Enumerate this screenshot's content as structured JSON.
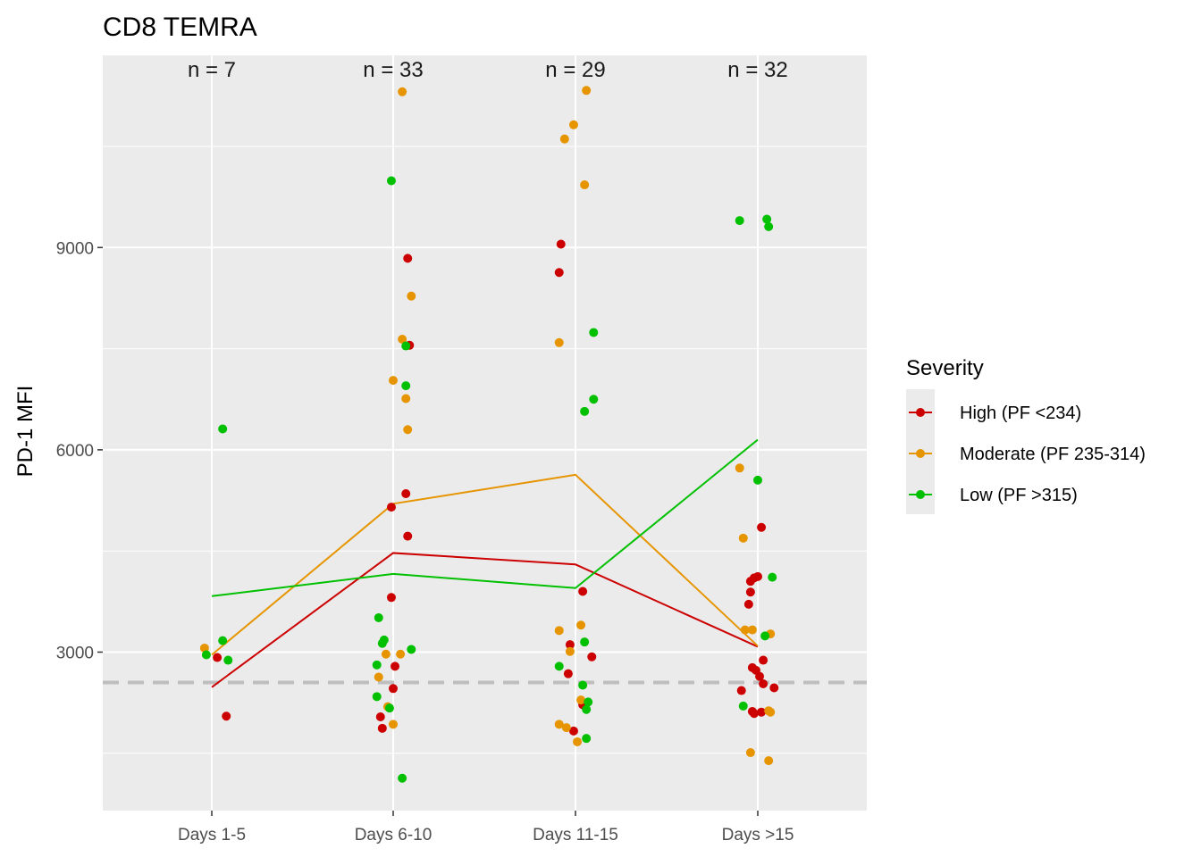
{
  "chart_data": {
    "type": "scatter",
    "title": "CD8 TEMRA",
    "xlabel": "",
    "ylabel": "PD-1 MFI",
    "categories": [
      "Days 1-5",
      "Days 6-10",
      "Days 11-15",
      "Days >15"
    ],
    "ylim": [
      650,
      11850
    ],
    "yticks": [
      3000,
      6000,
      9000
    ],
    "grid": true,
    "panel_background": "#ebebeb",
    "reference_line": {
      "y": 2550,
      "color": "#bebebe",
      "style": "dashed"
    },
    "n_labels": [
      "n = 7",
      "n = 33",
      "n = 29",
      "n = 32"
    ],
    "legend": {
      "title": "Severity",
      "position": "right"
    },
    "series": [
      {
        "name": "High (PF <234)",
        "color": "#cc0000",
        "line_means": [
          2480,
          4470,
          4300,
          3080
        ],
        "points": [
          [
            0.03,
            2920
          ],
          [
            0.08,
            2050
          ],
          [
            -0.01,
            5150
          ],
          [
            0.07,
            5350
          ],
          [
            0.08,
            4720
          ],
          [
            0.08,
            8840
          ],
          [
            0.09,
            7550
          ],
          [
            -0.01,
            3810
          ],
          [
            0.01,
            2790
          ],
          [
            0.0,
            2460
          ],
          [
            -0.07,
            2040
          ],
          [
            -0.06,
            1870
          ],
          [
            -0.08,
            9050
          ],
          [
            -0.09,
            8630
          ],
          [
            0.04,
            3900
          ],
          [
            -0.03,
            3110
          ],
          [
            0.09,
            2930
          ],
          [
            -0.04,
            2680
          ],
          [
            -0.01,
            1830
          ],
          [
            0.04,
            2220
          ],
          [
            0.02,
            4850
          ],
          [
            -0.04,
            4050
          ],
          [
            -0.02,
            4100
          ],
          [
            0.0,
            4120
          ],
          [
            -0.04,
            3890
          ],
          [
            -0.05,
            3710
          ],
          [
            -0.03,
            2770
          ],
          [
            0.03,
            2880
          ],
          [
            -0.01,
            2730
          ],
          [
            0.01,
            2640
          ],
          [
            0.03,
            2530
          ],
          [
            0.09,
            2470
          ],
          [
            -0.09,
            2430
          ],
          [
            -0.03,
            2120
          ],
          [
            -0.02,
            2090
          ],
          [
            0.02,
            2110
          ]
        ]
      },
      {
        "name": "Moderate (PF 235-314)",
        "color": "#e69500",
        "line_means": [
          2960,
          5200,
          5630,
          3090
        ],
        "points": [
          [
            -0.04,
            3060
          ],
          [
            0.05,
            11310
          ],
          [
            0.05,
            7640
          ],
          [
            0.1,
            8280
          ],
          [
            0.0,
            7030
          ],
          [
            0.07,
            6760
          ],
          [
            0.08,
            6300
          ],
          [
            -0.04,
            2970
          ],
          [
            0.04,
            2970
          ],
          [
            -0.08,
            2630
          ],
          [
            -0.03,
            2190
          ],
          [
            0.0,
            1930
          ],
          [
            0.06,
            11330
          ],
          [
            -0.01,
            10820
          ],
          [
            -0.06,
            10610
          ],
          [
            0.05,
            9930
          ],
          [
            -0.09,
            7590
          ],
          [
            -0.09,
            3320
          ],
          [
            0.03,
            3400
          ],
          [
            -0.03,
            3010
          ],
          [
            0.03,
            2290
          ],
          [
            -0.09,
            1930
          ],
          [
            -0.05,
            1880
          ],
          [
            0.01,
            1670
          ],
          [
            -0.1,
            5730
          ],
          [
            -0.08,
            4690
          ],
          [
            -0.07,
            3330
          ],
          [
            -0.03,
            3330
          ],
          [
            0.07,
            3270
          ],
          [
            0.06,
            2130
          ],
          [
            0.07,
            2110
          ],
          [
            -0.04,
            1510
          ],
          [
            0.06,
            1390
          ]
        ]
      },
      {
        "name": "Low (PF >315)",
        "color": "#00c000",
        "line_means": [
          3830,
          4160,
          3950,
          6150
        ],
        "points": [
          [
            0.06,
            6310
          ],
          [
            0.06,
            3170
          ],
          [
            -0.03,
            2960
          ],
          [
            0.09,
            2880
          ],
          [
            -0.01,
            9990
          ],
          [
            0.07,
            7540
          ],
          [
            0.07,
            6950
          ],
          [
            -0.08,
            3510
          ],
          [
            -0.06,
            3130
          ],
          [
            -0.05,
            3180
          ],
          [
            0.1,
            3040
          ],
          [
            -0.09,
            2810
          ],
          [
            -0.09,
            2340
          ],
          [
            -0.02,
            2170
          ],
          [
            0.05,
            1130
          ],
          [
            0.1,
            7740
          ],
          [
            0.1,
            6750
          ],
          [
            0.05,
            6570
          ],
          [
            -0.09,
            2790
          ],
          [
            0.05,
            3150
          ],
          [
            0.04,
            2510
          ],
          [
            0.07,
            2260
          ],
          [
            0.06,
            2150
          ],
          [
            0.06,
            1720
          ],
          [
            -0.1,
            9400
          ],
          [
            0.05,
            9420
          ],
          [
            0.06,
            9310
          ],
          [
            0.0,
            5550
          ],
          [
            0.08,
            4110
          ],
          [
            0.04,
            3240
          ],
          [
            -0.08,
            2200
          ]
        ]
      }
    ]
  }
}
